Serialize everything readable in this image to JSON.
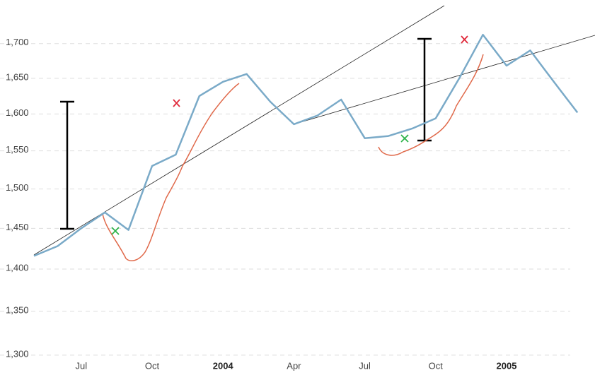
{
  "chart_data": {
    "type": "line",
    "log_scale": true,
    "grid": true,
    "x": [
      "2003-05",
      "2003-06",
      "2003-07",
      "2003-08",
      "2003-09",
      "2003-10",
      "2003-11",
      "2003-12",
      "2004-01",
      "2004-02",
      "2004-03",
      "2004-04",
      "2004-05",
      "2004-06",
      "2004-07",
      "2004-08",
      "2004-09",
      "2004-10",
      "2004-11",
      "2004-12",
      "2005-01",
      "2005-02",
      "2005-03",
      "2005-04"
    ],
    "series": [
      {
        "color": "#7aaac8",
        "values": [
          1416,
          1428,
          1450,
          1470,
          1448,
          1530,
          1545,
          1625,
          1645,
          1656,
          1617,
          1586,
          1598,
          1620,
          1567,
          1570,
          1580,
          1594,
          1650,
          1713,
          1668,
          1690,
          1645,
          1602
        ]
      }
    ],
    "xticks": [
      {
        "value": "2003-07",
        "label": "Jul"
      },
      {
        "value": "2003-10",
        "label": "Oct"
      },
      {
        "value": "2004-01",
        "label": "2004"
      },
      {
        "value": "2004-04",
        "label": "Apr"
      },
      {
        "value": "2004-07",
        "label": "Jul"
      },
      {
        "value": "2004-10",
        "label": "Oct"
      },
      {
        "value": "2005-01",
        "label": "2005"
      }
    ],
    "ylim": [
      1278,
      1765
    ],
    "yticks": [
      {
        "value": 1300,
        "label": "1,300"
      },
      {
        "value": 1350,
        "label": "1,350"
      },
      {
        "value": 1400,
        "label": "1,400"
      },
      {
        "value": 1450,
        "label": "1,450"
      },
      {
        "value": 1500,
        "label": "1,500"
      },
      {
        "value": 1550,
        "label": "1,550"
      },
      {
        "value": 1600,
        "label": "1,600"
      },
      {
        "value": 1650,
        "label": "1,650"
      },
      {
        "value": 1700,
        "label": "1,700"
      }
    ]
  }
}
